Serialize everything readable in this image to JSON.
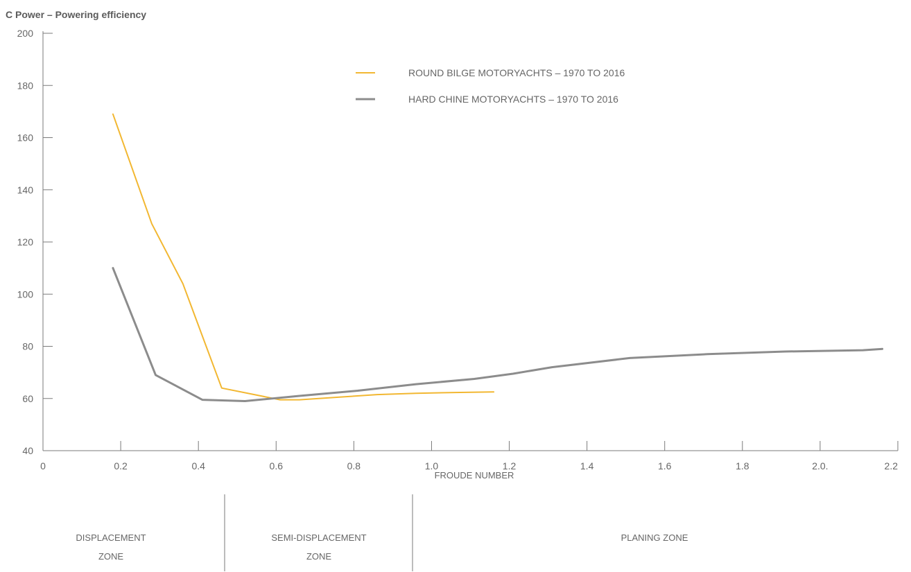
{
  "chart_data": {
    "type": "line",
    "title": "C Power – Powering efficiency",
    "xlabel": "FROUDE NUMBER",
    "ylabel": "",
    "xlim": [
      0,
      2.2
    ],
    "ylim": [
      40,
      200
    ],
    "x_ticks": [
      0,
      0.2,
      0.4,
      0.6,
      0.8,
      1.0,
      1.2,
      1.4,
      1.6,
      1.8,
      2.0,
      2.2
    ],
    "x_tick_labels": [
      "0",
      "0.2",
      "0.4",
      "0.6",
      "0.8",
      "1.0",
      "1.2",
      "1.4",
      "1.6",
      "1.8",
      "2.0.",
      "2.2"
    ],
    "y_ticks": [
      40,
      60,
      80,
      100,
      120,
      140,
      160,
      180,
      200
    ],
    "y_tick_labels": [
      "40",
      "60",
      "80",
      "100",
      "120",
      "140",
      "160",
      "180",
      "200"
    ],
    "grid": false,
    "legend_position": "top-center",
    "series": [
      {
        "name": "ROUND BILGE  MOTORYACHTS – 1970 TO 2016",
        "color": "#f2b731",
        "x": [
          0.18,
          0.28,
          0.36,
          0.39,
          0.46,
          0.61,
          0.66,
          0.76,
          0.86,
          0.96,
          1.06,
          1.16
        ],
        "y": [
          169,
          127,
          104,
          92,
          64,
          59.5,
          59.5,
          60.5,
          61.5,
          62.0,
          62.3,
          62.5
        ]
      },
      {
        "name": "HARD CHINE  MOTORYACHTS – 1970 TO 2016",
        "color": "#8c8c8c",
        "x": [
          0.18,
          0.29,
          0.41,
          0.52,
          0.66,
          0.81,
          0.96,
          1.11,
          1.21,
          1.31,
          1.51,
          1.71,
          1.91,
          2.11,
          2.16
        ],
        "y": [
          110,
          69,
          59.5,
          59,
          61,
          63,
          65.5,
          67.5,
          69.5,
          72,
          75.5,
          77,
          78,
          78.5,
          79
        ]
      }
    ],
    "zones": [
      {
        "label_line1": "DISPLACEMENT",
        "label_line2": "ZONE"
      },
      {
        "label_line1": "SEMI-DISPLACEMENT",
        "label_line2": "ZONE"
      },
      {
        "label_line1": "PLANING ZONE",
        "label_line2": ""
      }
    ]
  }
}
